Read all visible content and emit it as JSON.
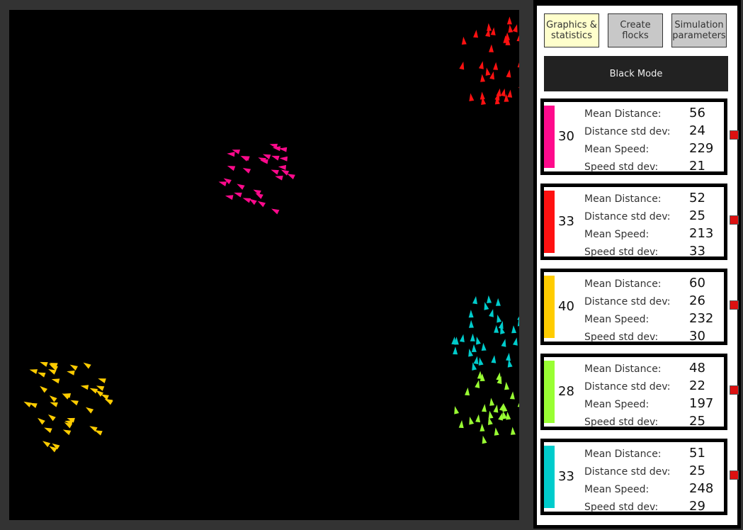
{
  "tabs": [
    {
      "label": "Graphics & statistics",
      "active": true
    },
    {
      "label": "Create flocks",
      "active": false
    },
    {
      "label": "Simulation parameters",
      "active": false
    }
  ],
  "black_mode_label": "Black Mode",
  "stat_labels": {
    "mean_distance": "Mean Distance:",
    "distance_std": "Distance std dev:",
    "mean_speed": "Mean Speed:",
    "speed_std": "Speed std dev:"
  },
  "flocks": [
    {
      "color": "#ff0a8c",
      "count": "30",
      "mean_distance": "56",
      "distance_std": "24",
      "mean_speed": "229",
      "speed_std": "21",
      "heading_deg": 200,
      "size": 30
    },
    {
      "color": "#ff1111",
      "count": "33",
      "mean_distance": "52",
      "distance_std": "25",
      "mean_speed": "213",
      "speed_std": "33",
      "heading_deg": 270,
      "size": 33
    },
    {
      "color": "#ffcc00",
      "count": "40",
      "mean_distance": "60",
      "distance_std": "26",
      "mean_speed": "232",
      "speed_std": "30",
      "heading_deg": 205,
      "size": 40
    },
    {
      "color": "#99ff33",
      "count": "28",
      "mean_distance": "48",
      "distance_std": "22",
      "mean_speed": "197",
      "speed_std": "25",
      "heading_deg": 270,
      "size": 28
    },
    {
      "color": "#00cccc",
      "count": "33",
      "mean_distance": "51",
      "distance_std": "25",
      "mean_speed": "248",
      "speed_std": "29",
      "heading_deg": 270,
      "size": 33
    }
  ],
  "colors": {
    "canvas_background": "#000000",
    "panel_border": "#000000",
    "active_tab": "#ffffcc",
    "inactive_tab": "#c8c8c8",
    "black_mode_button": "#222222",
    "delete_button": "#dd1111"
  }
}
